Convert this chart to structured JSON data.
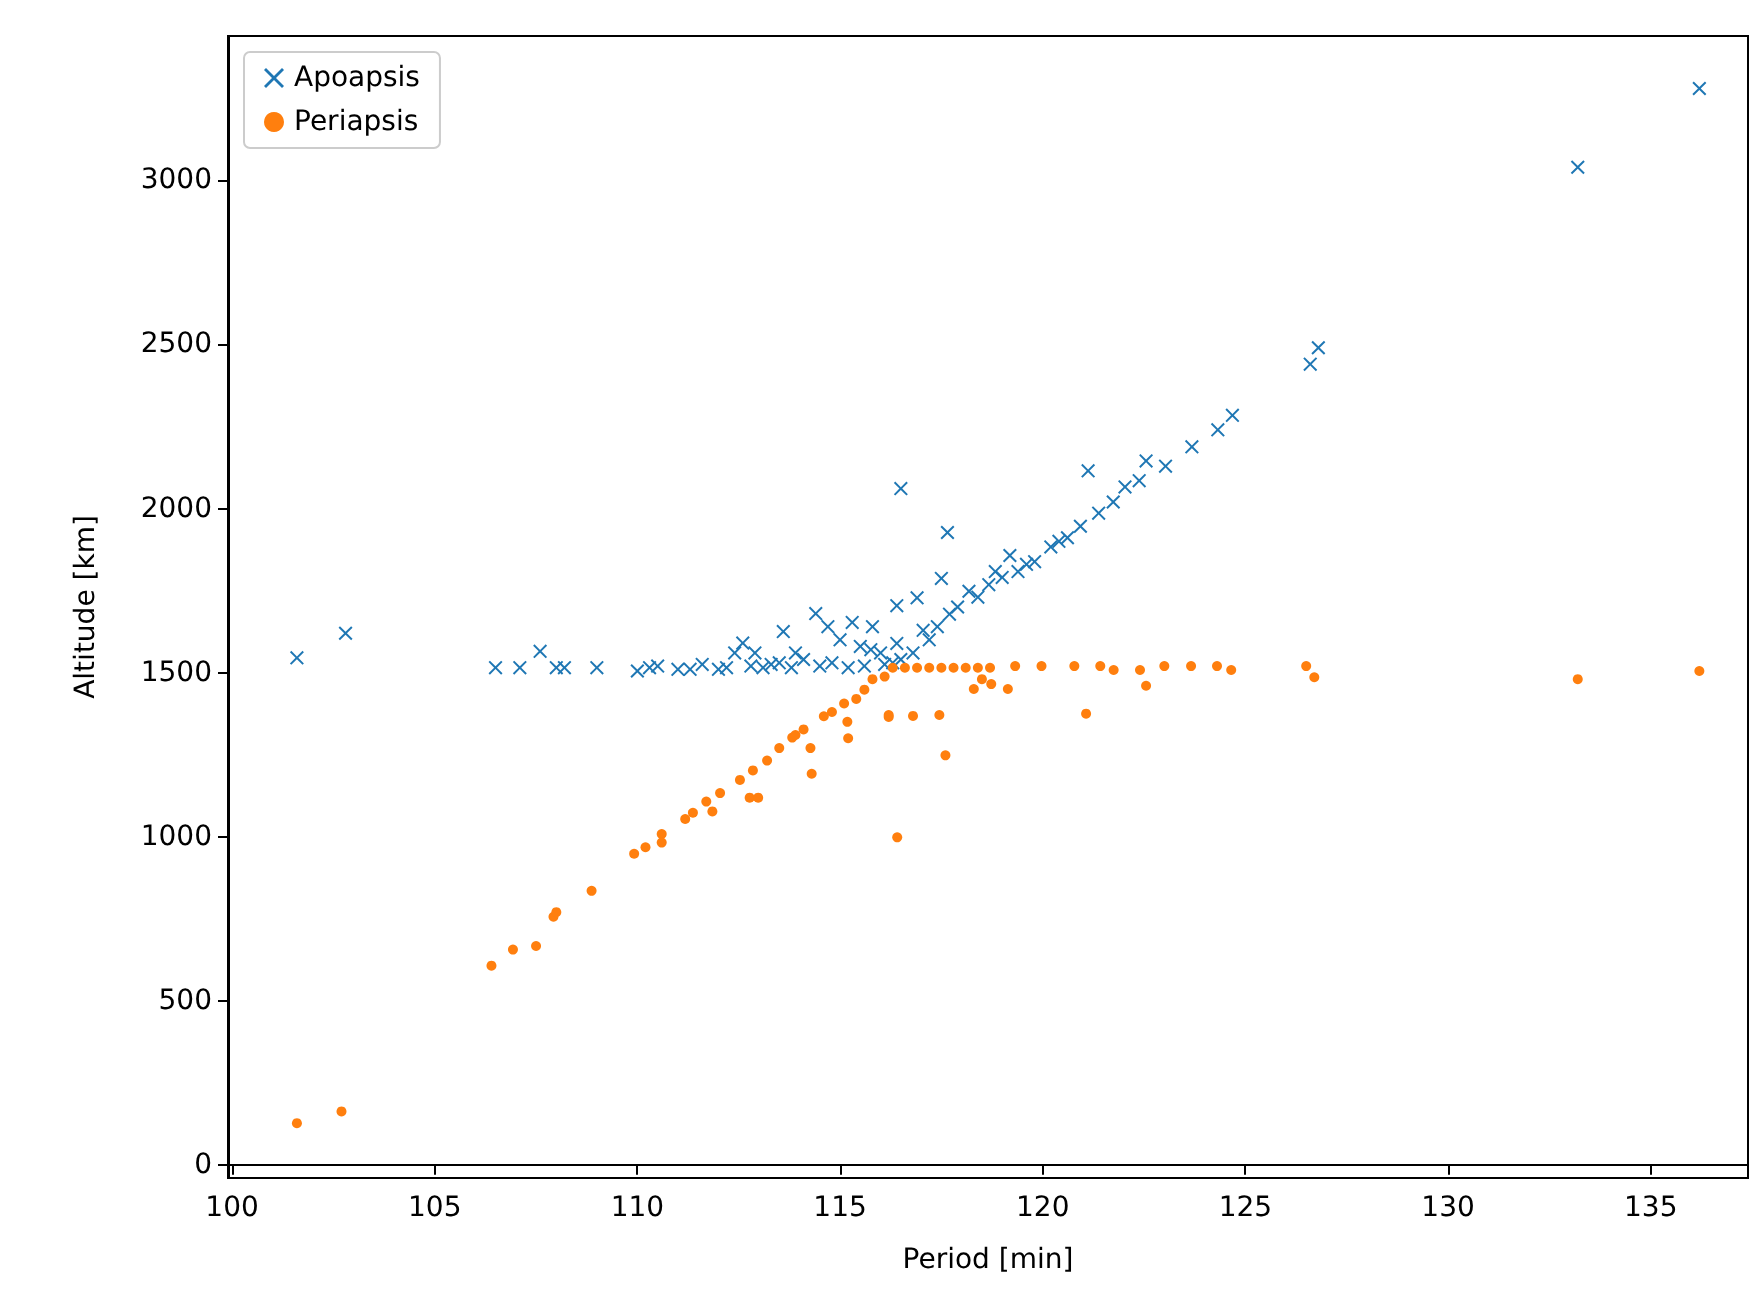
{
  "chart_data": {
    "type": "scatter",
    "xlabel": "Period [min]",
    "ylabel": "Altitude [km]",
    "xlim": [
      99.9,
      137.4
    ],
    "xticks": [
      100,
      105,
      110,
      115,
      120,
      125,
      130,
      135
    ],
    "ylim": [
      -40,
      3440
    ],
    "yticks": [
      0,
      500,
      1000,
      1500,
      2000,
      2500,
      3000
    ],
    "legend": "top left",
    "series": [
      {
        "name": "Apoapsis",
        "color": "#1f77b4",
        "marker": "cross",
        "x": [
          101.6,
          102.8,
          106.5,
          107.1,
          107.6,
          108,
          108.2,
          109,
          110,
          110.3,
          110.5,
          111,
          111.3,
          111.6,
          112,
          112.4,
          112.6,
          112.9,
          113.3,
          113.6,
          113.9,
          114.4,
          114.7,
          115,
          115.5,
          115.8,
          116,
          116.3,
          112.2,
          112.8,
          113.1,
          113.5,
          113.8,
          114.1,
          114.5,
          114.8,
          115.2,
          115.6,
          116.1,
          116.5,
          116.5,
          117.65,
          117.5,
          116.9,
          116.4,
          115.3,
          119.19,
          118.83,
          121.12,
          122.55,
          123.03,
          123.68,
          124.32,
          124.68,
          126.6,
          126.8,
          133.2,
          136.2,
          121.38,
          121.74,
          122.03,
          122.38,
          120.93,
          120.61,
          120.2,
          119.8,
          119.39,
          118.67,
          118.18,
          117.7,
          117.05,
          116.4,
          115.76,
          116.8,
          117.2,
          117.4,
          117.9,
          118.4,
          119.0,
          119.6,
          120.4
        ],
        "values": [
          1545,
          1620,
          1515,
          1515,
          1565,
          1515,
          1515,
          1515,
          1505,
          1515,
          1520,
          1510,
          1510,
          1525,
          1510,
          1560,
          1590,
          1560,
          1525,
          1625,
          1560,
          1680,
          1640,
          1600,
          1580,
          1640,
          1560,
          1530,
          1515,
          1520,
          1515,
          1530,
          1515,
          1540,
          1520,
          1530,
          1515,
          1520,
          1525,
          1540,
          2061,
          1927,
          1787,
          1728,
          1704,
          1653,
          1857,
          1808,
          2115,
          2145,
          2129,
          2188,
          2240,
          2284,
          2440,
          2490,
          3040,
          3280,
          1986,
          2020,
          2066,
          2085,
          1946,
          1911,
          1883,
          1838,
          1808,
          1768,
          1748,
          1678,
          1629,
          1589,
          1570,
          1560,
          1600,
          1640,
          1700,
          1730,
          1790,
          1830,
          1900
        ]
      },
      {
        "name": "Periapsis",
        "color": "#ff7f0e",
        "marker": "circle",
        "x": [
          101.6,
          102.7,
          106.4,
          106.93,
          107.5,
          107.93,
          108.0,
          108.87,
          109.92,
          110.2,
          110.6,
          110.6,
          111.18,
          111.37,
          111.85,
          111.7,
          112.04,
          112.53,
          112.77,
          112.98,
          112.85,
          113.2,
          113.5,
          113.82,
          114.3,
          114.27,
          114.1,
          114.6,
          115.1,
          115.2,
          115.18,
          115.6,
          116.1,
          116.2,
          116.41,
          116.3,
          116.6,
          116.9,
          117.2,
          117.5,
          117.8,
          118.1,
          118.4,
          118.7,
          119.32,
          119.97,
          120.78,
          121.42,
          121.75,
          122.4,
          123.0,
          123.66,
          124.3,
          124.65,
          126.5,
          126.7,
          122.55,
          121.07,
          119.14,
          118.73,
          118.3,
          118.5,
          117.6,
          117.45,
          116.8,
          116.2,
          133.2,
          136.2,
          115.8,
          115.4,
          114.8,
          113.9
        ],
        "values": [
          127,
          163,
          607,
          656,
          667,
          756,
          770,
          835,
          948,
          968,
          1008,
          982,
          1054,
          1073,
          1077,
          1107,
          1133,
          1173,
          1119,
          1119,
          1202,
          1232,
          1270,
          1302,
          1192,
          1270,
          1327,
          1367,
          1406,
          1300,
          1350,
          1448,
          1488,
          1365,
          998,
          1515,
          1515,
          1515,
          1515,
          1515,
          1515,
          1515,
          1515,
          1515,
          1520,
          1520,
          1520,
          1520,
          1508,
          1508,
          1520,
          1520,
          1520,
          1508,
          1520,
          1486,
          1460,
          1375,
          1450,
          1465,
          1450,
          1480,
          1248,
          1371,
          1368,
          1371,
          1480,
          1505,
          1480,
          1420,
          1380,
          1310
        ]
      }
    ]
  }
}
